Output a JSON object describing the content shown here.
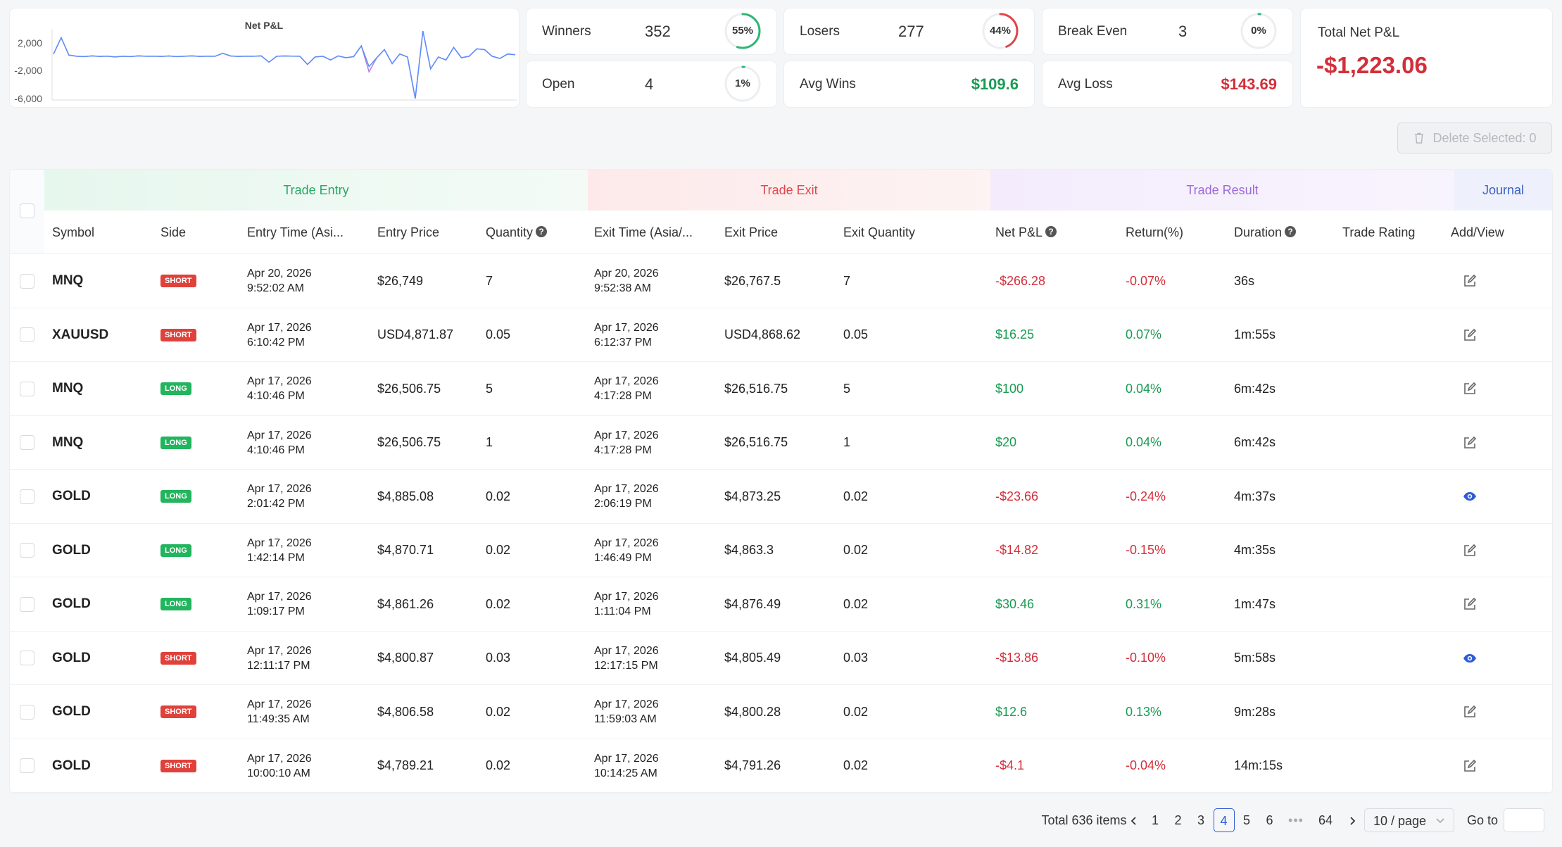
{
  "chart": {
    "title": "Net P&L",
    "y_ticks": [
      "2,000",
      "-2,000",
      "-6,000"
    ]
  },
  "chart_data": {
    "type": "line",
    "title": "Net P&L",
    "ylim": [
      -6000,
      3500
    ],
    "y_ticks": [
      2000,
      -2000,
      -6000
    ],
    "series": [
      {
        "color": "#5b8ff9",
        "values": [
          200,
          2400,
          50,
          -100,
          -150,
          -50,
          -120,
          -80,
          -200,
          -100,
          -150,
          -50,
          -100,
          -80,
          -120,
          -60,
          -150,
          -100,
          -50,
          -120,
          -80,
          -100,
          300,
          -60,
          -120,
          -80,
          -100,
          -50,
          -900,
          -100,
          -60,
          -80,
          -100,
          -1200,
          -200,
          -100,
          -600,
          -50,
          -300,
          -150,
          1300,
          -1500,
          -300,
          800,
          -1100,
          200,
          -200,
          -5800,
          3300,
          -1800,
          -200,
          -600,
          1100,
          -300,
          -100,
          900,
          800,
          -100,
          -400,
          200,
          100
        ]
      },
      {
        "color": "#b47fe0",
        "values": [
          200,
          2400,
          50,
          -100,
          -150,
          -50,
          -120,
          -80,
          -200,
          -100,
          -150,
          -50,
          -100,
          -80,
          -120,
          -60,
          -150,
          -100,
          -50,
          -120,
          -80,
          -100,
          300,
          -60,
          -120,
          -80,
          -100,
          -50,
          -900,
          -100,
          -60,
          -80,
          -100,
          -1200,
          -200,
          -100,
          -600,
          -50,
          -300,
          -150,
          1300,
          -2200,
          -300,
          800,
          -1100,
          200,
          -200,
          -5800,
          3300,
          -1800,
          -200,
          -600,
          1100,
          -300,
          -100,
          900,
          800,
          -100,
          -400,
          200,
          100
        ]
      }
    ]
  },
  "stats": {
    "winners": {
      "label": "Winners",
      "value": "352",
      "pct_label": "55%",
      "pct": 0.55
    },
    "losers": {
      "label": "Losers",
      "value": "277",
      "pct_label": "44%",
      "pct": 0.44
    },
    "break_even": {
      "label": "Break Even",
      "value": "3",
      "pct_label": "0%",
      "pct": 0.0
    },
    "open": {
      "label": "Open",
      "value": "4",
      "pct_label": "1%",
      "pct": 0.01
    },
    "avg_wins": {
      "label": "Avg Wins",
      "value": "$109.6"
    },
    "avg_loss": {
      "label": "Avg Loss",
      "value": "$143.69"
    },
    "total": {
      "label": "Total Net P&L",
      "value": "-$1,223.06"
    }
  },
  "colors": {
    "green": "#1a9b54",
    "red": "#d22f3a",
    "ring_green": "#2fb573",
    "ring_red": "#e0454a",
    "ring_track": "#eceef1"
  },
  "toolbar": {
    "delete_label": "Delete Selected: 0",
    "delete_icon": "trash-icon"
  },
  "groups": {
    "entry": "Trade Entry",
    "exit": "Trade Exit",
    "result": "Trade Result",
    "journal": "Journal"
  },
  "columns": {
    "symbol": "Symbol",
    "side": "Side",
    "entry_time": "Entry Time (Asi...",
    "entry_price": "Entry Price",
    "quantity": "Quantity",
    "exit_time": "Exit Time (Asia/...",
    "exit_price": "Exit Price",
    "exit_quantity": "Exit Quantity",
    "net_pnl": "Net P&L",
    "return": "Return(%)",
    "duration": "Duration",
    "rating": "Trade Rating",
    "add_view": "Add/View",
    "help_icon": "?"
  },
  "rows": [
    {
      "symbol": "MNQ",
      "side": "SHORT",
      "entry_date": "Apr 20, 2026",
      "entry_clock": "9:52:02 AM",
      "entry_price": "$26,749",
      "qty": "7",
      "exit_date": "Apr 20, 2026",
      "exit_clock": "9:52:38 AM",
      "exit_price": "$26,767.5",
      "exit_qty": "7",
      "pnl": "-$266.28",
      "ret": "-0.07%",
      "dur": "36s",
      "positive": false,
      "action": "edit-icon"
    },
    {
      "symbol": "XAUUSD",
      "side": "SHORT",
      "entry_date": "Apr 17, 2026",
      "entry_clock": "6:10:42 PM",
      "entry_price": "USD4,871.87",
      "qty": "0.05",
      "exit_date": "Apr 17, 2026",
      "exit_clock": "6:12:37 PM",
      "exit_price": "USD4,868.62",
      "exit_qty": "0.05",
      "pnl": "$16.25",
      "ret": "0.07%",
      "dur": "1m:55s",
      "positive": true,
      "action": "edit-icon"
    },
    {
      "symbol": "MNQ",
      "side": "LONG",
      "entry_date": "Apr 17, 2026",
      "entry_clock": "4:10:46 PM",
      "entry_price": "$26,506.75",
      "qty": "5",
      "exit_date": "Apr 17, 2026",
      "exit_clock": "4:17:28 PM",
      "exit_price": "$26,516.75",
      "exit_qty": "5",
      "pnl": "$100",
      "ret": "0.04%",
      "dur": "6m:42s",
      "positive": true,
      "action": "edit-icon"
    },
    {
      "symbol": "MNQ",
      "side": "LONG",
      "entry_date": "Apr 17, 2026",
      "entry_clock": "4:10:46 PM",
      "entry_price": "$26,506.75",
      "qty": "1",
      "exit_date": "Apr 17, 2026",
      "exit_clock": "4:17:28 PM",
      "exit_price": "$26,516.75",
      "exit_qty": "1",
      "pnl": "$20",
      "ret": "0.04%",
      "dur": "6m:42s",
      "positive": true,
      "action": "edit-icon"
    },
    {
      "symbol": "GOLD",
      "side": "LONG",
      "entry_date": "Apr 17, 2026",
      "entry_clock": "2:01:42 PM",
      "entry_price": "$4,885.08",
      "qty": "0.02",
      "exit_date": "Apr 17, 2026",
      "exit_clock": "2:06:19 PM",
      "exit_price": "$4,873.25",
      "exit_qty": "0.02",
      "pnl": "-$23.66",
      "ret": "-0.24%",
      "dur": "4m:37s",
      "positive": false,
      "action": "eye-icon"
    },
    {
      "symbol": "GOLD",
      "side": "LONG",
      "entry_date": "Apr 17, 2026",
      "entry_clock": "1:42:14 PM",
      "entry_price": "$4,870.71",
      "qty": "0.02",
      "exit_date": "Apr 17, 2026",
      "exit_clock": "1:46:49 PM",
      "exit_price": "$4,863.3",
      "exit_qty": "0.02",
      "pnl": "-$14.82",
      "ret": "-0.15%",
      "dur": "4m:35s",
      "positive": false,
      "action": "edit-icon"
    },
    {
      "symbol": "GOLD",
      "side": "LONG",
      "entry_date": "Apr 17, 2026",
      "entry_clock": "1:09:17 PM",
      "entry_price": "$4,861.26",
      "qty": "0.02",
      "exit_date": "Apr 17, 2026",
      "exit_clock": "1:11:04 PM",
      "exit_price": "$4,876.49",
      "exit_qty": "0.02",
      "pnl": "$30.46",
      "ret": "0.31%",
      "dur": "1m:47s",
      "positive": true,
      "action": "edit-icon"
    },
    {
      "symbol": "GOLD",
      "side": "SHORT",
      "entry_date": "Apr 17, 2026",
      "entry_clock": "12:11:17 PM",
      "entry_price": "$4,800.87",
      "qty": "0.03",
      "exit_date": "Apr 17, 2026",
      "exit_clock": "12:17:15 PM",
      "exit_price": "$4,805.49",
      "exit_qty": "0.03",
      "pnl": "-$13.86",
      "ret": "-0.10%",
      "dur": "5m:58s",
      "positive": false,
      "action": "eye-icon"
    },
    {
      "symbol": "GOLD",
      "side": "SHORT",
      "entry_date": "Apr 17, 2026",
      "entry_clock": "11:49:35 AM",
      "entry_price": "$4,806.58",
      "qty": "0.02",
      "exit_date": "Apr 17, 2026",
      "exit_clock": "11:59:03 AM",
      "exit_price": "$4,800.28",
      "exit_qty": "0.02",
      "pnl": "$12.6",
      "ret": "0.13%",
      "dur": "9m:28s",
      "positive": true,
      "action": "edit-icon"
    },
    {
      "symbol": "GOLD",
      "side": "SHORT",
      "entry_date": "Apr 17, 2026",
      "entry_clock": "10:00:10 AM",
      "entry_price": "$4,789.21",
      "qty": "0.02",
      "exit_date": "Apr 17, 2026",
      "exit_clock": "10:14:25 AM",
      "exit_price": "$4,791.26",
      "exit_qty": "0.02",
      "pnl": "-$4.1",
      "ret": "-0.04%",
      "dur": "14m:15s",
      "positive": false,
      "action": "edit-icon"
    }
  ],
  "pagination": {
    "total": "Total 636 items",
    "pages": [
      "1",
      "2",
      "3",
      "4",
      "5",
      "6"
    ],
    "current": "4",
    "ellipsis": "•••",
    "last": "64",
    "prev_icon": "chevron-left-icon",
    "next_icon": "chevron-right-icon",
    "page_size": "10 / page",
    "goto_label": "Go to",
    "goto_value": ""
  }
}
